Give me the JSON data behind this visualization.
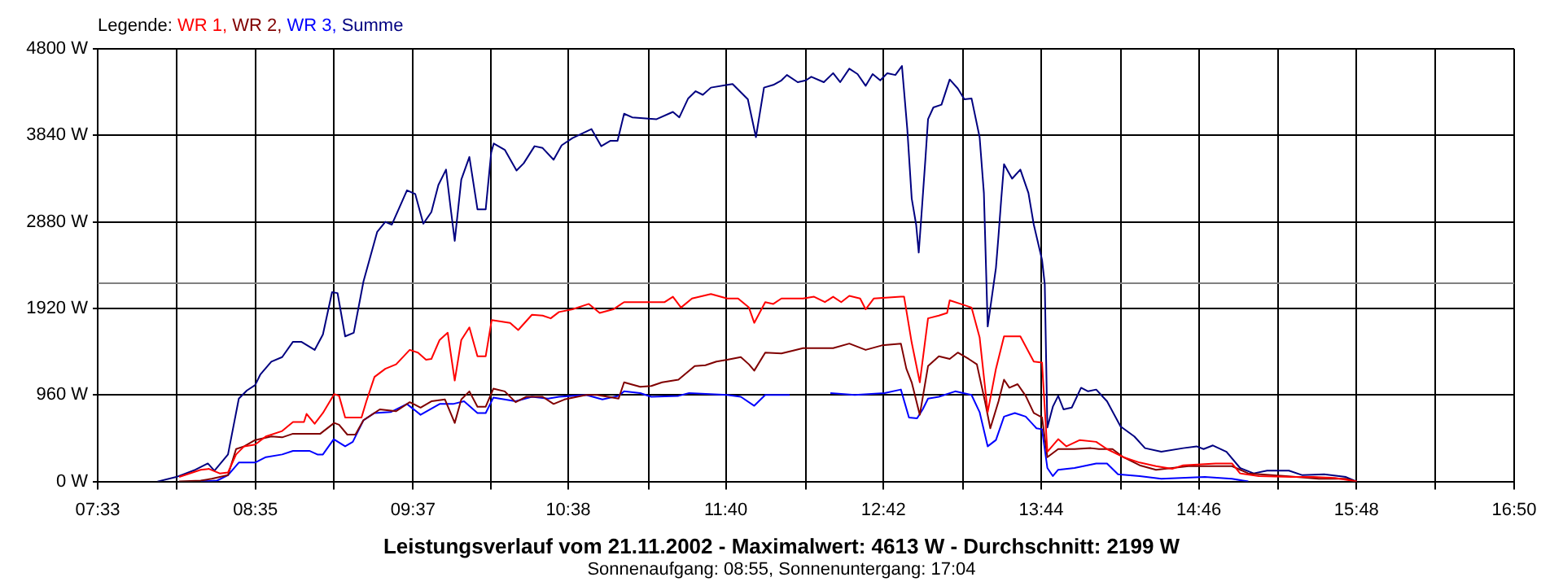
{
  "chart_data": {
    "type": "line",
    "title": "Leistungsverlauf vom 21.11.2002 - Maximalwert: 4613 W - Durchschnitt: 2199 W",
    "subtitle": "Sonnenaufgang: 08:55, Sonnenuntergang: 17:04",
    "legend_title": "Legende:",
    "legend": "top left",
    "grid": true,
    "marker": "none",
    "xlim": [
      7.55,
      16.8333
    ],
    "xticks": [
      {
        "value": 7.55,
        "label": "07:33"
      },
      {
        "value": 8.066,
        "label": null
      },
      {
        "value": 8.5833,
        "label": "08:35"
      },
      {
        "value": 9.097,
        "label": null
      },
      {
        "value": 9.6167,
        "label": "09:37"
      },
      {
        "value": 10.129,
        "label": null
      },
      {
        "value": 10.6333,
        "label": "10:38"
      },
      {
        "value": 11.16,
        "label": null
      },
      {
        "value": 11.6667,
        "label": "11:40"
      },
      {
        "value": 12.192,
        "label": null
      },
      {
        "value": 12.7,
        "label": "12:42"
      },
      {
        "value": 13.223,
        "label": null
      },
      {
        "value": 13.7333,
        "label": "13:44"
      },
      {
        "value": 14.255,
        "label": null
      },
      {
        "value": 14.7667,
        "label": "14:46"
      },
      {
        "value": 15.286,
        "label": null
      },
      {
        "value": 15.8,
        "label": "15:48"
      },
      {
        "value": 16.318,
        "label": null
      },
      {
        "value": 16.8333,
        "label": "16:50"
      }
    ],
    "ylim": [
      0,
      4800
    ],
    "yticks": [
      {
        "value": 0,
        "label": "0 W"
      },
      {
        "value": 960,
        "label": "960 W"
      },
      {
        "value": 1920,
        "label": "1920 W"
      },
      {
        "value": 2880,
        "label": "2880 W"
      },
      {
        "value": 3840,
        "label": "3840 W"
      },
      {
        "value": 4800,
        "label": "4800 W"
      }
    ],
    "ref_lines": [
      {
        "axis": "y",
        "value": 2199,
        "color": "#808080"
      }
    ],
    "series": [
      {
        "name": "WR 1,",
        "color": "#ff0000",
        "x": [
          8.084,
          8.225,
          8.279,
          8.35,
          8.404,
          8.457,
          8.51,
          8.582,
          8.652,
          8.759,
          8.83,
          8.902,
          8.919,
          8.972,
          9.026,
          9.1,
          9.132,
          9.172,
          9.279,
          9.311,
          9.364,
          9.435,
          9.506,
          9.595,
          9.649,
          9.702,
          9.737,
          9.791,
          9.844,
          9.89,
          9.933,
          9.986,
          10.039,
          10.093,
          10.132,
          10.253,
          10.306,
          10.396,
          10.466,
          10.519,
          10.573,
          10.662,
          10.769,
          10.84,
          10.929,
          11.0,
          11.266,
          11.32,
          11.373,
          11.445,
          11.569,
          11.676,
          11.747,
          11.818,
          11.853,
          11.925,
          11.978,
          12.031,
          12.085,
          12.173,
          12.245,
          12.316,
          12.37,
          12.423,
          12.476,
          12.547,
          12.583,
          12.636,
          12.814,
          12.835,
          12.885,
          12.938,
          12.992,
          13.063,
          13.117,
          13.134,
          13.205,
          13.277,
          13.33,
          13.383,
          13.437,
          13.49,
          13.597,
          13.685,
          13.739,
          13.774,
          13.845,
          13.899,
          13.987,
          14.094,
          14.165,
          14.272,
          14.379,
          14.486,
          14.592,
          14.664,
          14.877,
          14.984,
          15.037,
          15.161,
          15.374,
          15.517,
          15.659,
          15.801
        ],
        "values": [
          50,
          130,
          140,
          90,
          100,
          300,
          390,
          410,
          500,
          560,
          660,
          660,
          750,
          640,
          760,
          970,
          950,
          710,
          710,
          890,
          1160,
          1250,
          1300,
          1460,
          1430,
          1350,
          1360,
          1570,
          1650,
          1120,
          1570,
          1710,
          1390,
          1390,
          1790,
          1760,
          1680,
          1850,
          1840,
          1810,
          1880,
          1910,
          1970,
          1870,
          1910,
          1990,
          1990,
          2050,
          1930,
          2030,
          2080,
          2030,
          2030,
          1930,
          1760,
          1990,
          1970,
          2030,
          2030,
          2030,
          2050,
          1990,
          2050,
          1990,
          2060,
          2030,
          1910,
          2030,
          2050,
          2050,
          1540,
          1100,
          1810,
          1840,
          1870,
          2010,
          1970,
          1930,
          1600,
          770,
          1250,
          1610,
          1610,
          1330,
          1320,
          330,
          470,
          390,
          460,
          440,
          360,
          270,
          210,
          170,
          140,
          180,
          200,
          200,
          90,
          60,
          50,
          50,
          40,
          0
        ]
      },
      {
        "name": "WR 2,",
        "color": "#800000",
        "x": [
          8.084,
          8.225,
          8.297,
          8.404,
          8.457,
          8.51,
          8.582,
          8.688,
          8.759,
          8.83,
          9.009,
          9.1,
          9.132,
          9.186,
          9.239,
          9.292,
          9.399,
          9.506,
          9.595,
          9.666,
          9.737,
          9.826,
          9.89,
          9.933,
          9.986,
          10.039,
          10.093,
          10.143,
          10.218,
          10.289,
          10.359,
          10.466,
          10.538,
          10.609,
          10.751,
          10.822,
          10.964,
          11.0,
          11.106,
          11.178,
          11.249,
          11.356,
          11.463,
          11.533,
          11.605,
          11.676,
          11.765,
          11.818,
          11.853,
          11.925,
          12.031,
          12.103,
          12.173,
          12.37,
          12.476,
          12.583,
          12.69,
          12.814,
          12.85,
          12.885,
          12.938,
          12.992,
          13.063,
          13.134,
          13.187,
          13.258,
          13.312,
          13.365,
          13.4,
          13.454,
          13.49,
          13.525,
          13.579,
          13.632,
          13.685,
          13.739,
          13.774,
          13.845,
          13.952,
          14.059,
          14.112,
          14.201,
          14.272,
          14.379,
          14.486,
          14.699,
          14.984,
          15.091,
          15.339,
          15.553,
          15.731,
          15.801
        ],
        "values": [
          0,
          10,
          30,
          70,
          360,
          390,
          460,
          500,
          490,
          530,
          530,
          650,
          630,
          520,
          520,
          680,
          800,
          780,
          880,
          820,
          890,
          910,
          650,
          910,
          1000,
          830,
          830,
          1030,
          1000,
          880,
          940,
          940,
          860,
          910,
          960,
          960,
          920,
          1100,
          1050,
          1060,
          1100,
          1130,
          1280,
          1290,
          1330,
          1350,
          1380,
          1300,
          1230,
          1430,
          1420,
          1450,
          1480,
          1480,
          1530,
          1460,
          1510,
          1530,
          1250,
          1100,
          740,
          1280,
          1390,
          1360,
          1430,
          1360,
          1300,
          890,
          590,
          890,
          1130,
          1040,
          1080,
          950,
          760,
          710,
          270,
          360,
          360,
          370,
          360,
          360,
          270,
          180,
          130,
          170,
          170,
          90,
          60,
          30,
          30,
          0
        ]
      },
      {
        "name": "WR 3,",
        "color": "#0000ff",
        "x": [
          8.225,
          8.332,
          8.404,
          8.475,
          8.582,
          8.652,
          8.759,
          8.83,
          8.937,
          8.99,
          9.026,
          9.097,
          9.172,
          9.222,
          9.292,
          9.364,
          9.47,
          9.577,
          9.666,
          9.791,
          9.879,
          9.951,
          10.039,
          10.093,
          10.143,
          10.289,
          10.396,
          10.502,
          10.573,
          10.751,
          10.858,
          10.964,
          11.0,
          11.106,
          11.178,
          11.356,
          11.426,
          11.676,
          11.765,
          11.853,
          11.925,
          12.031,
          12.085,
          12.218,
          12.352,
          12.512,
          12.707,
          12.814,
          12.867,
          12.92,
          12.957,
          12.992,
          13.063,
          13.17,
          13.277,
          13.33,
          13.383,
          13.437,
          13.49,
          13.561,
          13.632,
          13.703,
          13.739,
          13.774,
          13.81,
          13.845,
          13.952,
          14.094,
          14.165,
          14.237,
          14.379,
          14.521,
          14.806,
          14.984,
          15.091
        ],
        "values": [
          0,
          10,
          70,
          210,
          210,
          270,
          300,
          340,
          340,
          300,
          300,
          470,
          390,
          440,
          680,
          760,
          770,
          860,
          740,
          860,
          860,
          890,
          760,
          760,
          930,
          890,
          940,
          920,
          940,
          960,
          910,
          950,
          1000,
          980,
          940,
          950,
          980,
          960,
          940,
          840,
          960,
          960,
          960,
          null,
          980,
          960,
          980,
          1020,
          710,
          700,
          800,
          920,
          940,
          1000,
          960,
          770,
          390,
          460,
          720,
          760,
          720,
          590,
          580,
          150,
          60,
          130,
          150,
          200,
          200,
          80,
          60,
          30,
          50,
          30,
          0
        ]
      },
      {
        "name": "Summe",
        "color": "#000080",
        "x": [
          7.942,
          8.065,
          8.19,
          8.272,
          8.315,
          8.404,
          8.475,
          8.528,
          8.582,
          8.617,
          8.688,
          8.759,
          8.83,
          8.884,
          8.972,
          9.026,
          9.086,
          9.122,
          9.172,
          9.228,
          9.292,
          9.382,
          9.435,
          9.478,
          9.577,
          9.631,
          9.684,
          9.737,
          9.783,
          9.833,
          9.862,
          9.89,
          9.933,
          9.986,
          10.039,
          10.093,
          10.129,
          10.146,
          10.218,
          10.295,
          10.342,
          10.413,
          10.466,
          10.538,
          10.591,
          10.662,
          10.786,
          10.85,
          10.911,
          10.957,
          11.0,
          11.053,
          11.213,
          11.32,
          11.362,
          11.42,
          11.469,
          11.516,
          11.569,
          11.676,
          11.711,
          11.811,
          11.864,
          11.917,
          11.978,
          12.031,
          12.067,
          12.138,
          12.191,
          12.227,
          12.309,
          12.37,
          12.416,
          12.476,
          12.53,
          12.583,
          12.629,
          12.679,
          12.725,
          12.778,
          12.821,
          12.832,
          12.856,
          12.885,
          12.914,
          12.931,
          12.949,
          12.974,
          12.992,
          13.027,
          13.08,
          13.134,
          13.187,
          13.23,
          13.277,
          13.33,
          13.358,
          13.383,
          13.437,
          13.454,
          13.472,
          13.49,
          13.543,
          13.597,
          13.65,
          13.685,
          13.739,
          13.757,
          13.774,
          13.81,
          13.845,
          13.88,
          13.934,
          13.995,
          14.041,
          14.094,
          14.165,
          14.254,
          14.344,
          14.414,
          14.521,
          14.664,
          14.752,
          14.798,
          14.859,
          14.948,
          15.037,
          15.126,
          15.214,
          15.357,
          15.446,
          15.588,
          15.731,
          15.801
        ],
        "values": [
          0,
          50,
          130,
          200,
          120,
          300,
          920,
          1010,
          1070,
          1190,
          1330,
          1380,
          1550,
          1550,
          1460,
          1630,
          2100,
          2090,
          1610,
          1650,
          2220,
          2770,
          2880,
          2850,
          3230,
          3190,
          2860,
          2990,
          3290,
          3460,
          3050,
          2670,
          3350,
          3600,
          3020,
          3020,
          3650,
          3750,
          3680,
          3450,
          3530,
          3720,
          3700,
          3570,
          3730,
          3810,
          3910,
          3720,
          3780,
          3780,
          4080,
          4040,
          4020,
          4100,
          4040,
          4250,
          4330,
          4290,
          4370,
          4400,
          4410,
          4240,
          3820,
          4370,
          4400,
          4450,
          4510,
          4430,
          4450,
          4490,
          4430,
          4530,
          4430,
          4580,
          4520,
          4390,
          4520,
          4450,
          4530,
          4510,
          4610,
          4390,
          3910,
          3140,
          2850,
          2540,
          2960,
          3560,
          4020,
          4150,
          4180,
          4460,
          4360,
          4240,
          4250,
          3820,
          3200,
          1720,
          2370,
          2730,
          3140,
          3520,
          3360,
          3460,
          3200,
          2850,
          2460,
          2190,
          600,
          830,
          950,
          800,
          820,
          1040,
          1000,
          1020,
          890,
          610,
          500,
          370,
          330,
          370,
          390,
          360,
          400,
          330,
          150,
          90,
          120,
          120,
          70,
          80,
          50,
          0
        ]
      }
    ]
  }
}
